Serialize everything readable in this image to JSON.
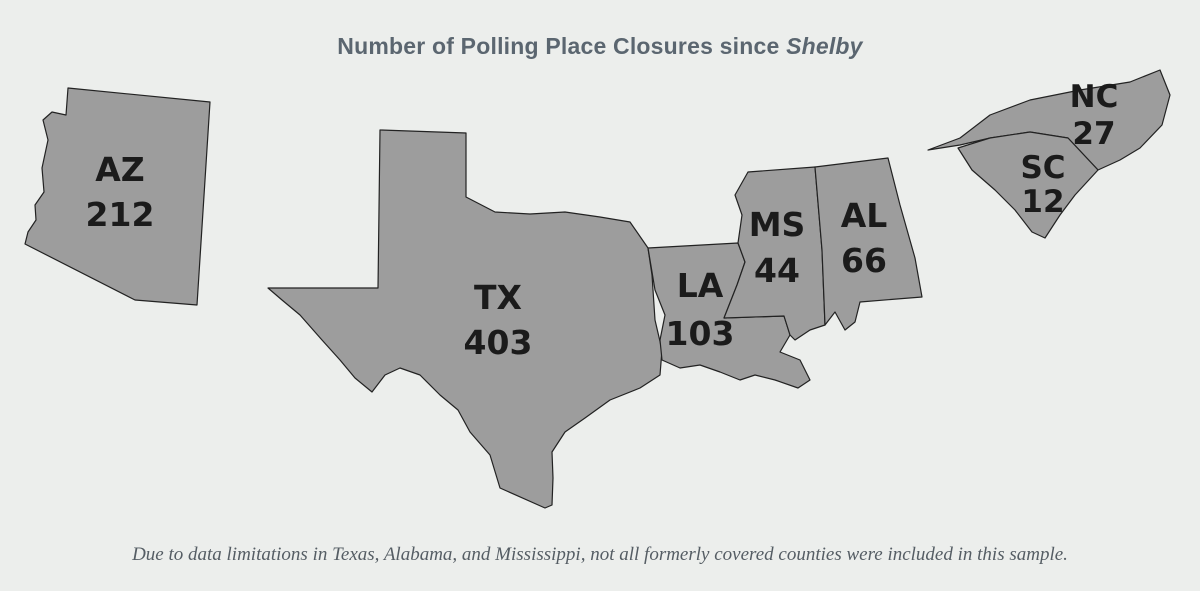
{
  "title": {
    "prefix": "Number of Polling Place Closures since",
    "emphasis": "Shelby"
  },
  "states": [
    {
      "abbr": "AZ",
      "closures": "212"
    },
    {
      "abbr": "TX",
      "closures": "403"
    },
    {
      "abbr": "LA",
      "closures": "103"
    },
    {
      "abbr": "MS",
      "closures": "44"
    },
    {
      "abbr": "AL",
      "closures": "66"
    },
    {
      "abbr": "NC",
      "closures": "27"
    },
    {
      "abbr": "SC",
      "closures": "12"
    }
  ],
  "footnote": "Due to data limitations in Texas, Alabama, and Mississippi, not all formerly covered counties were included in this sample.",
  "colors": {
    "state_fill": "#9d9d9d",
    "background": "#eceeec",
    "title": "#5b6670"
  }
}
